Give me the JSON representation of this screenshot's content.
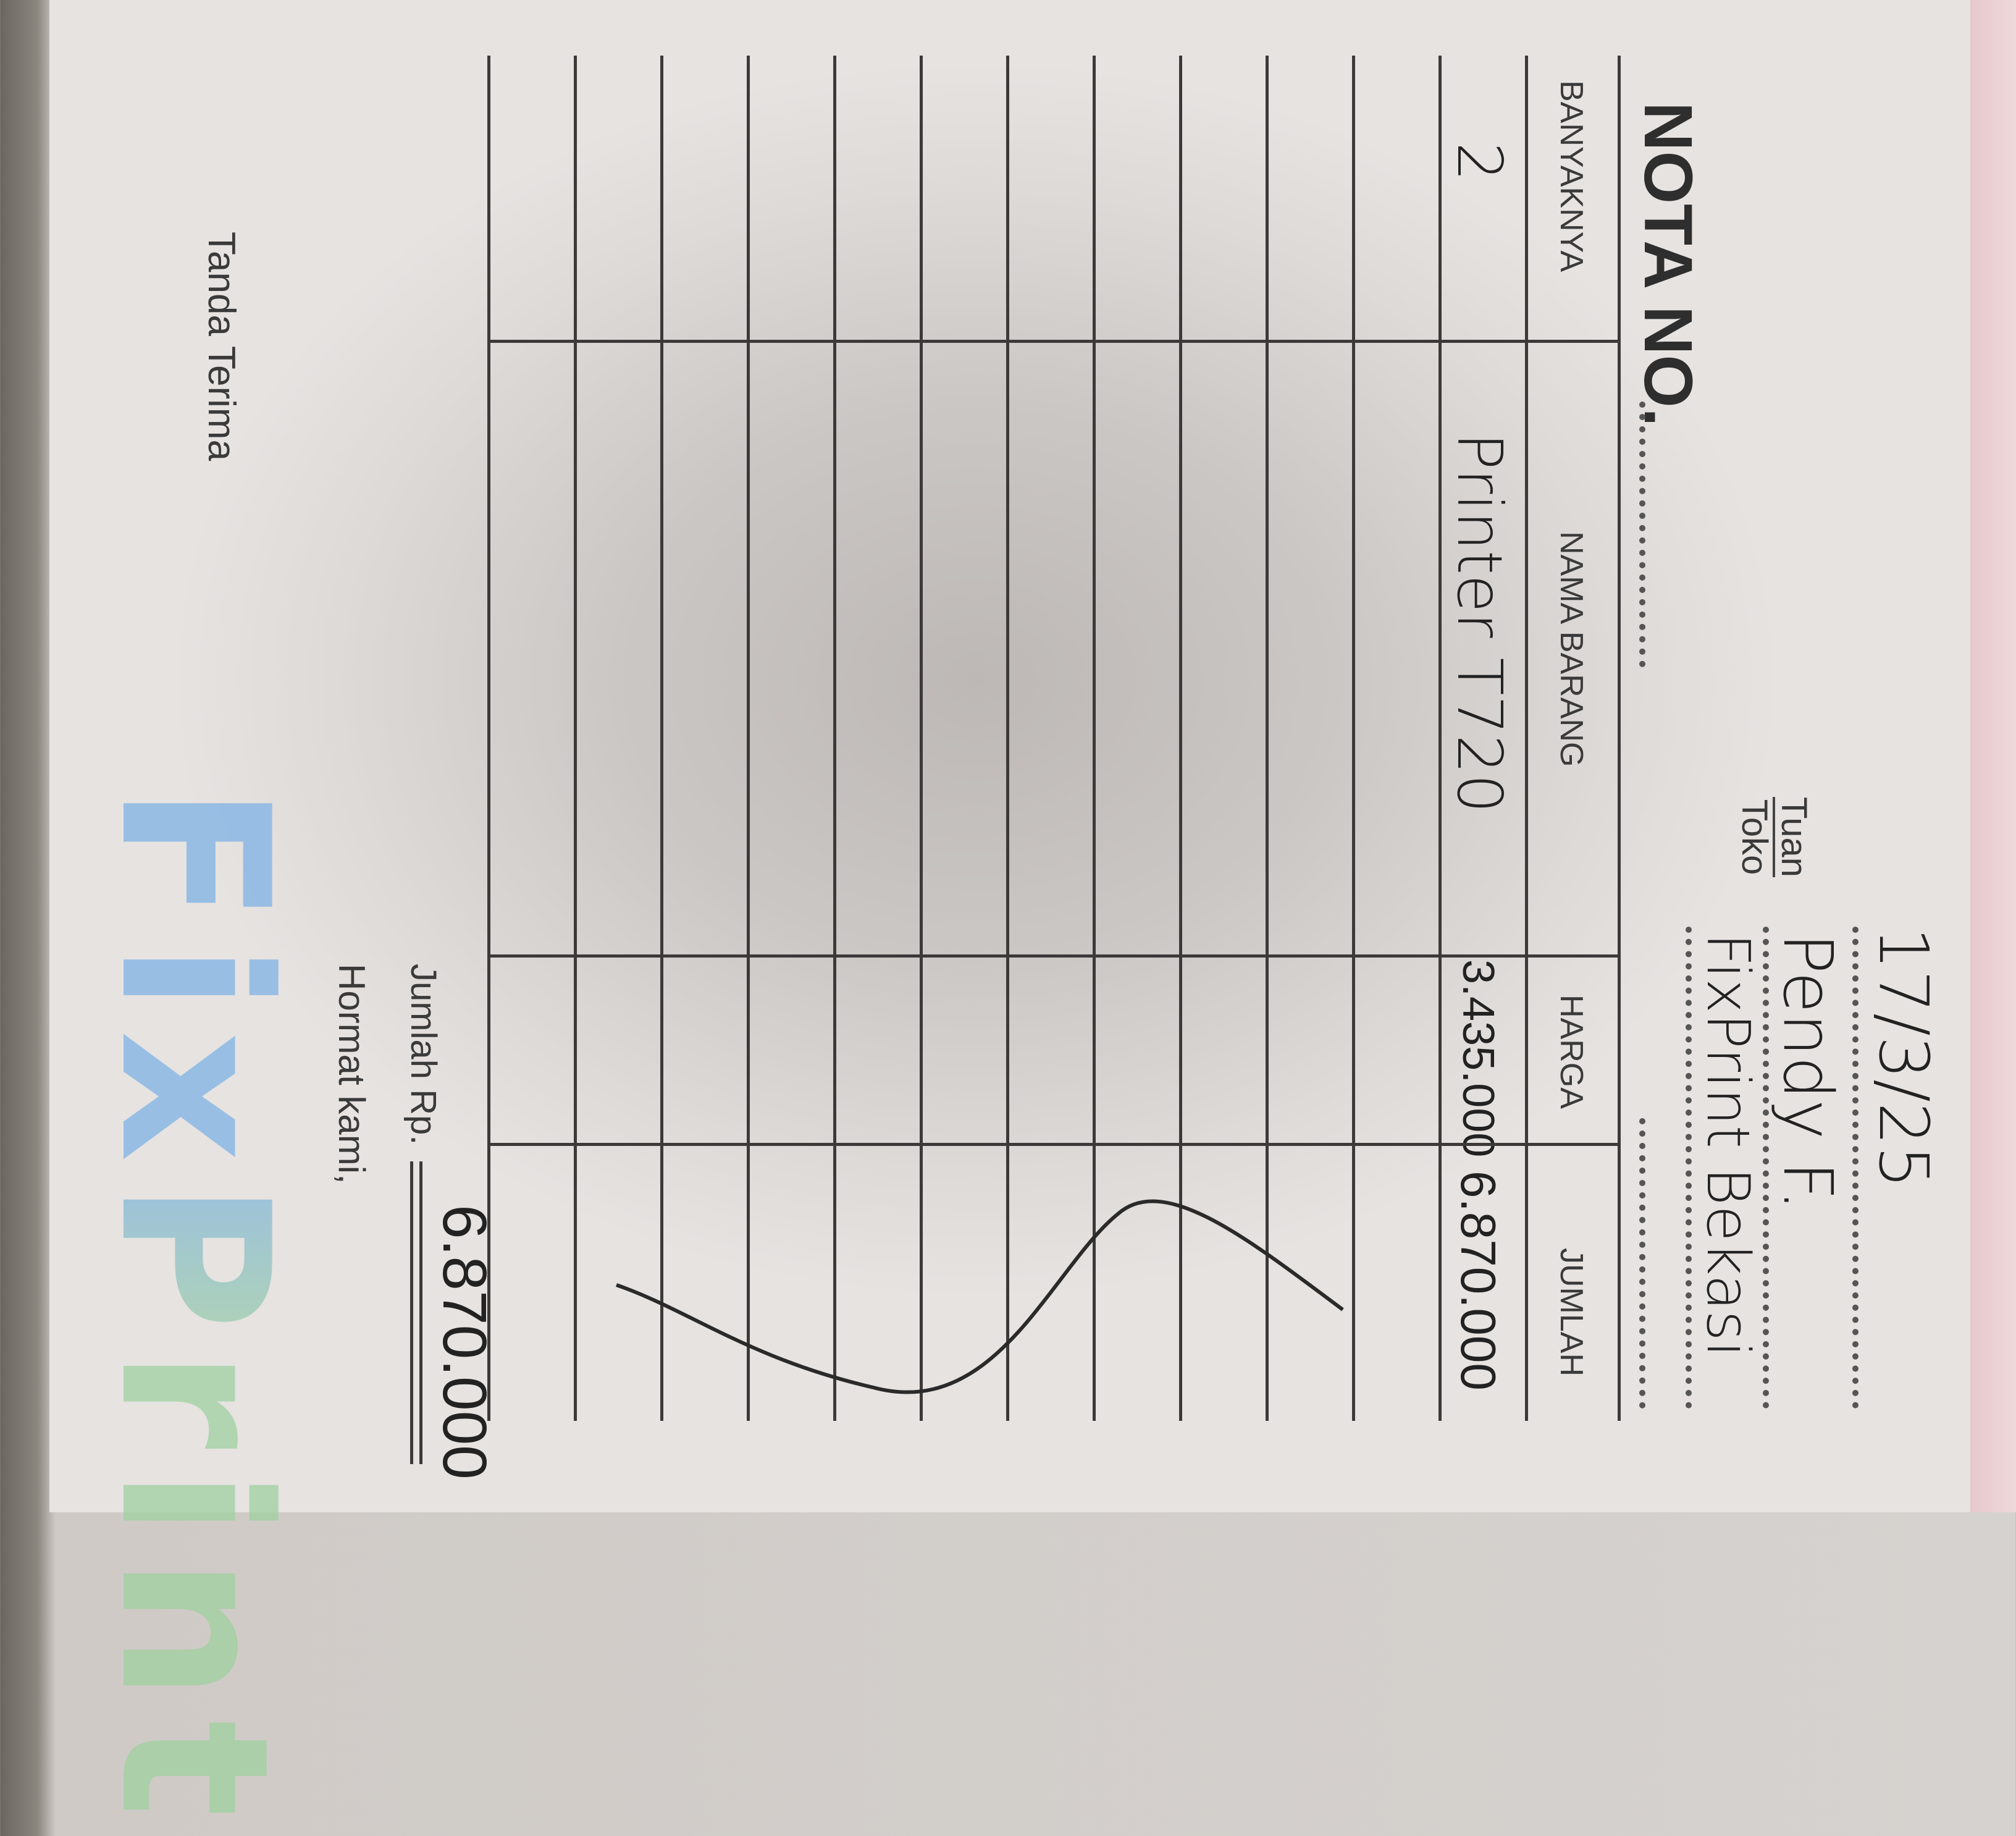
{
  "header": {
    "date": "17/3/25",
    "tuan_label": "Tuan",
    "toko_label": "Toko",
    "tuan_value": "Pendy F.",
    "toko_value": "FixPrint Bekasi",
    "nota_label": "NOTA NO."
  },
  "table": {
    "columns": [
      "BANYAKNYA",
      "NAMA BARANG",
      "HARGA",
      "JUMLAH"
    ],
    "rows": [
      {
        "qty": "2",
        "item": "Printer T720",
        "price": "3.435.000",
        "amount": "6.870.000"
      }
    ]
  },
  "footer": {
    "total_label": "Jumlah Rp.",
    "total_value": "6.870.000",
    "hormat_kami": "Hormat kami,",
    "tanda_terima": "Tanda Terima"
  },
  "logo": {
    "text": "FixPrint",
    "colors": [
      "#7fb2e6",
      "#9fd1a0"
    ]
  }
}
